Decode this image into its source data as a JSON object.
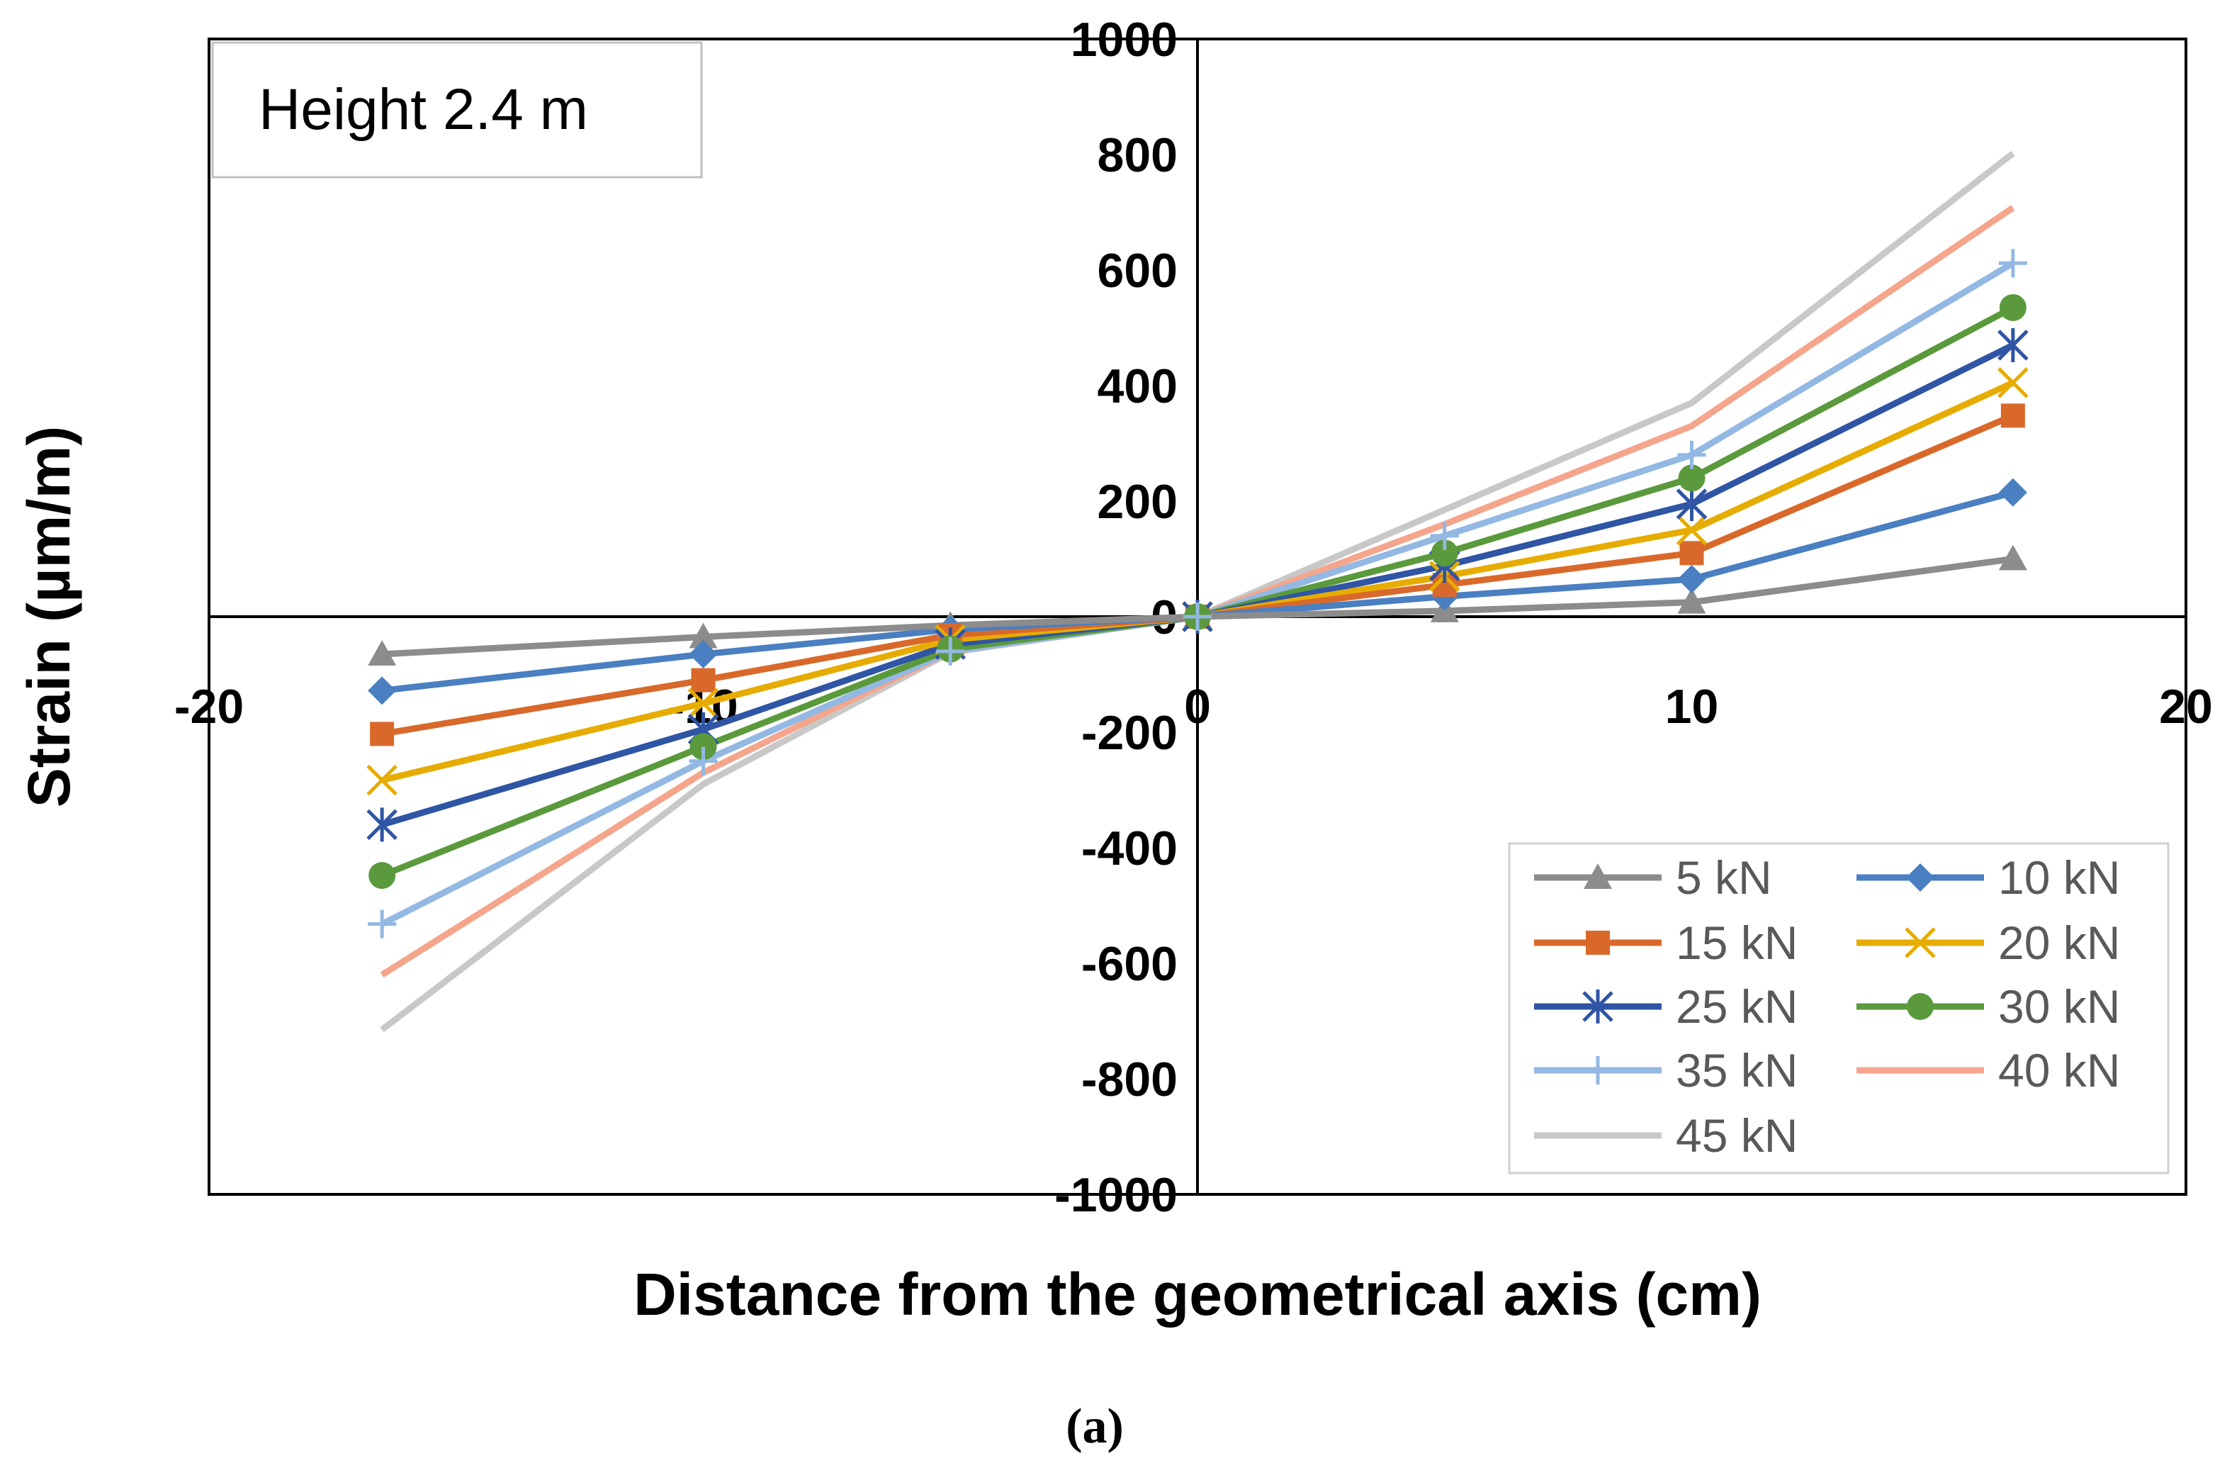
{
  "chart_data": {
    "type": "line",
    "annotation": "Height 2.4 m",
    "xlabel": "Distance from the geometrical axis (cm)",
    "ylabel": "Strain (µm/m)",
    "caption": "(a)",
    "xlim": [
      -20,
      20
    ],
    "ylim": [
      -1000,
      1000
    ],
    "x_ticks": [
      "-20",
      "-10",
      "0",
      "10",
      "20"
    ],
    "y_ticks": [
      "-1000",
      "-800",
      "-600",
      "-400",
      "-200",
      "0",
      "200",
      "400",
      "600",
      "800",
      "1000"
    ],
    "grid": false,
    "legend_position": "bottom-right",
    "x": [
      -16.5,
      -10,
      -5,
      0,
      5,
      10,
      16.5
    ],
    "series": [
      {
        "name": "5 kN",
        "color": "#8c8c8c",
        "marker": "triangle",
        "values": [
          -65,
          -35,
          -15,
          0,
          10,
          25,
          100
        ]
      },
      {
        "name": "10 kN",
        "color": "#4a7fc1",
        "marker": "diamond",
        "values": [
          -128,
          -65,
          -22,
          0,
          35,
          65,
          215
        ]
      },
      {
        "name": "15 kN",
        "color": "#d9692b",
        "marker": "square",
        "values": [
          -203,
          -110,
          -32,
          0,
          55,
          110,
          348
        ]
      },
      {
        "name": "20 kN",
        "color": "#e6ac00",
        "marker": "x",
        "values": [
          -283,
          -150,
          -40,
          0,
          70,
          150,
          405
        ]
      },
      {
        "name": "25 kN",
        "color": "#2f55a4",
        "marker": "star",
        "values": [
          -360,
          -195,
          -48,
          0,
          88,
          195,
          470
        ]
      },
      {
        "name": "30 kN",
        "color": "#5a9a3c",
        "marker": "circle",
        "values": [
          -448,
          -225,
          -56,
          0,
          110,
          240,
          535
        ]
      },
      {
        "name": "35 kN",
        "color": "#93b8e3",
        "marker": "plus",
        "values": [
          -532,
          -250,
          -60,
          0,
          140,
          280,
          612
        ]
      },
      {
        "name": "40 kN",
        "color": "#f4a58c",
        "marker": "none",
        "values": [
          -620,
          -270,
          -60,
          0,
          160,
          330,
          708
        ]
      },
      {
        "name": "45 kN",
        "color": "#c8c8c8",
        "marker": "none",
        "values": [
          -715,
          -290,
          -62,
          0,
          185,
          370,
          802
        ]
      }
    ]
  }
}
